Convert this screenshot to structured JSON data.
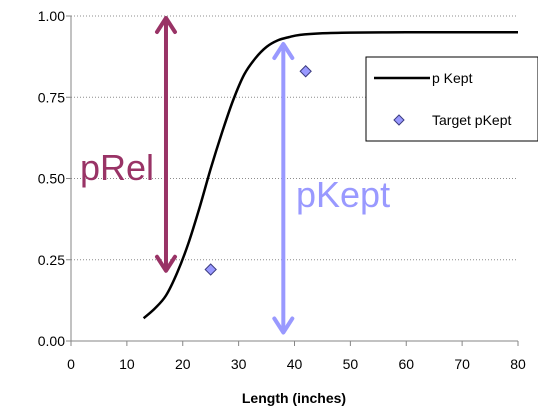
{
  "chart_data": {
    "type": "scatter",
    "title": "",
    "xlabel": "Length (inches)",
    "ylabel": "",
    "xlim": [
      0,
      80
    ],
    "ylim": [
      0,
      1
    ],
    "x_ticks": [
      "0",
      "10",
      "20",
      "30",
      "40",
      "50",
      "60",
      "70",
      "80"
    ],
    "y_ticks": [
      "0.00",
      "0.25",
      "0.50",
      "0.75",
      "1.00"
    ],
    "grid": "horizontal-dotted",
    "legend_position": "right",
    "series": [
      {
        "name": "p Kept",
        "kind": "line",
        "color": "#000000",
        "x": [
          13,
          15,
          17,
          19,
          21,
          23,
          25,
          27,
          29,
          31,
          33,
          35,
          37,
          39,
          41,
          45,
          50,
          60,
          70,
          80
        ],
        "y": [
          0.07,
          0.1,
          0.14,
          0.21,
          0.3,
          0.41,
          0.53,
          0.64,
          0.74,
          0.82,
          0.87,
          0.905,
          0.925,
          0.935,
          0.942,
          0.947,
          0.949,
          0.95,
          0.95,
          0.95
        ]
      },
      {
        "name": "Target pKept",
        "kind": "marker",
        "marker": "diamond",
        "color": "#9999ff",
        "x": [
          25,
          42
        ],
        "y": [
          0.22,
          0.83
        ]
      }
    ],
    "annotations": [
      {
        "text": "pRel",
        "color": "#993366",
        "x": 17,
        "y_from": 0.21,
        "y_to": 1.0
      },
      {
        "text": "pKept",
        "color": "#9999ff",
        "x": 38,
        "y_from": 0.02,
        "y_to": 0.92
      }
    ]
  }
}
